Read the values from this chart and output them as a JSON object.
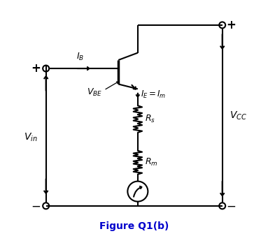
{
  "title": "Figure Q1(b)",
  "title_color": "#0000CC",
  "title_fontsize": 10,
  "bg_color": "#FFFFFF",
  "line_color": "#000000",
  "lw": 1.5
}
